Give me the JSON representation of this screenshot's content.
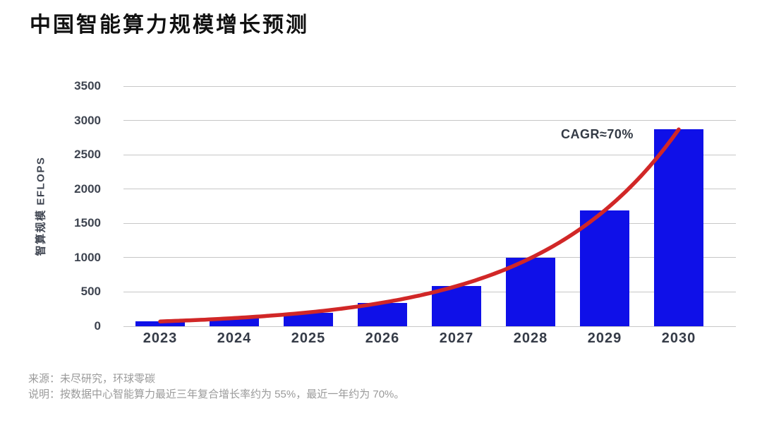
{
  "page": {
    "title": "中国智能算力规模增长预测"
  },
  "chart_data": {
    "type": "bar",
    "title": "中国智能算力规模增长预测",
    "categories": [
      "2023",
      "2024",
      "2025",
      "2026",
      "2027",
      "2028",
      "2029",
      "2030"
    ],
    "values": [
      70,
      120,
      200,
      345,
      585,
      995,
      1690,
      2870
    ],
    "trend_line": {
      "type": "exponential",
      "fits_values": true,
      "start_value": 70,
      "end_value": 2870
    },
    "annotation": "CAGR≈70%",
    "xlabel": "",
    "ylabel": "智算规模 EFLOPS",
    "ylim": [
      0,
      3500
    ],
    "yticks": [
      0,
      500,
      1000,
      1500,
      2000,
      2500,
      3000,
      3500
    ],
    "grid": true,
    "legend_position": "none",
    "bar_color": "#0f10e8",
    "line_color": "#d12727"
  },
  "footer": {
    "source": "来源：未尽研究，环球零碳",
    "note": "说明：按数据中心智能算力最近三年复合增长率约为 55%，最近一年约为 70%。"
  },
  "colors": {
    "title_text": "#111111",
    "axis_text": "#3e4450",
    "gridline": "#c7c7c7",
    "footer_text": "#9a9a9a",
    "background": "#ffffff"
  }
}
